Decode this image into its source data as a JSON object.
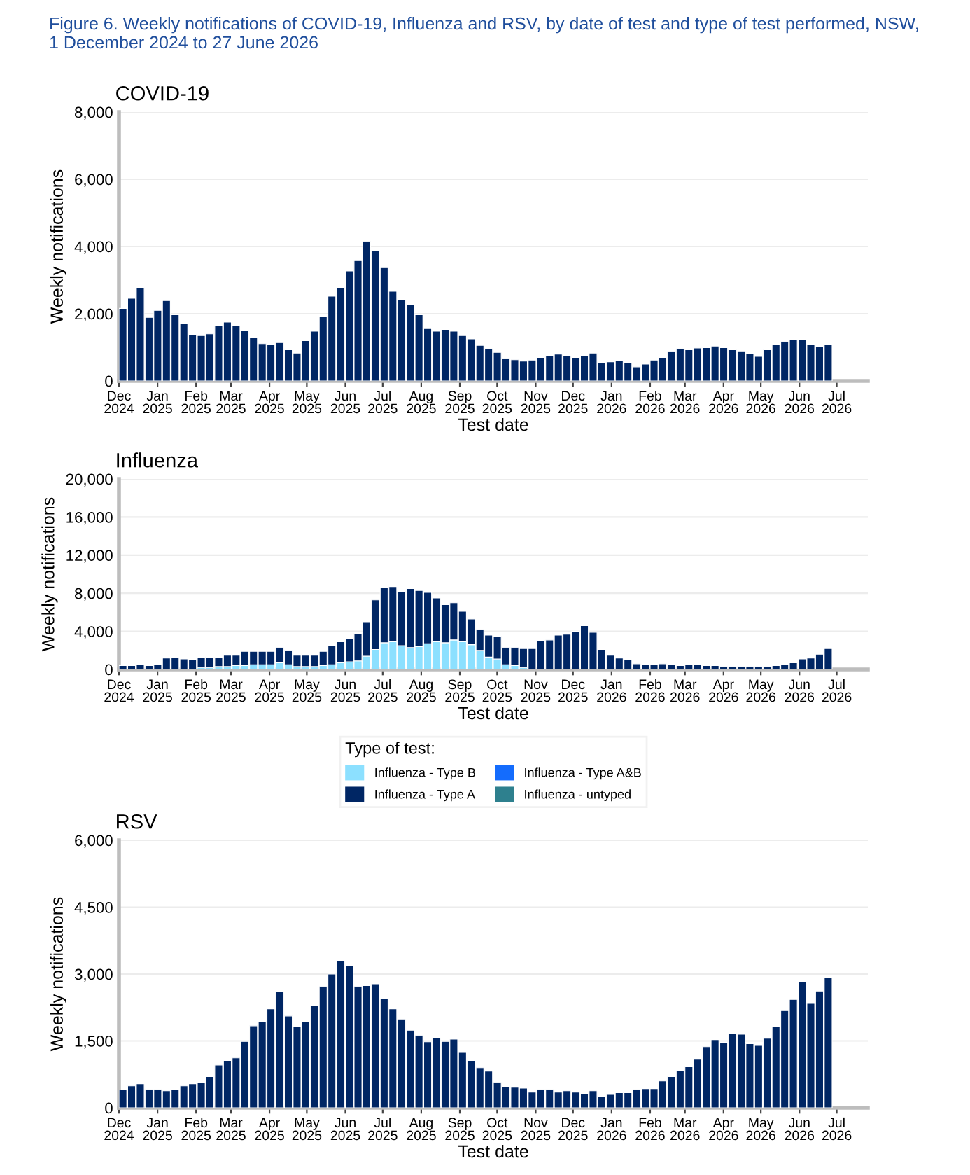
{
  "chart_data": [
    {
      "type": "bar",
      "title": "Figure 6. Weekly notifications of COVID-19, Influenza and RSV, by date of test and type of test performed, NSW,\n1 December 2024 to 27 June 2026",
      "subtitle": "COVID-19",
      "xlabel": "Test date",
      "ylabel": "Weekly notifications",
      "x": [
        "2024-12-01",
        "2024-12-08",
        "2024-12-15",
        "2024-12-22",
        "2024-12-29",
        "2025-01-05",
        "2025-01-12",
        "2025-01-19",
        "2025-01-26",
        "2025-02-02",
        "2025-02-09",
        "2025-02-16",
        "2025-02-23",
        "2025-03-02",
        "2025-03-09",
        "2025-03-16",
        "2025-03-23",
        "2025-03-30",
        "2025-04-06",
        "2025-04-13",
        "2025-04-20",
        "2025-04-27",
        "2025-05-04",
        "2025-05-11",
        "2025-05-18",
        "2025-05-25",
        "2025-06-01",
        "2025-06-08",
        "2025-06-15",
        "2025-06-22",
        "2025-06-29",
        "2025-07-06",
        "2025-07-13",
        "2025-07-20",
        "2025-07-27",
        "2025-08-03",
        "2025-08-10",
        "2025-08-17",
        "2025-08-24",
        "2025-08-31",
        "2025-09-07",
        "2025-09-14",
        "2025-09-21",
        "2025-09-28",
        "2025-10-05",
        "2025-10-12",
        "2025-10-19",
        "2025-10-26",
        "2025-11-02",
        "2025-11-09",
        "2025-11-16",
        "2025-11-23",
        "2025-11-30",
        "2025-12-07",
        "2025-12-14",
        "2025-12-21",
        "2025-12-28",
        "2026-01-04",
        "2026-01-11",
        "2026-01-18",
        "2026-01-25",
        "2026-02-01",
        "2026-02-08",
        "2026-02-15",
        "2026-02-22",
        "2026-03-01",
        "2026-03-08",
        "2026-03-15",
        "2026-03-22",
        "2026-03-29",
        "2026-04-05",
        "2026-04-12",
        "2026-04-19",
        "2026-04-26",
        "2026-05-03",
        "2026-05-10",
        "2026-05-17",
        "2026-05-24",
        "2026-05-31",
        "2026-06-07",
        "2026-06-14",
        "2026-06-21"
      ],
      "series": [
        {
          "color": "#002664",
          "values": [
            2160,
            2460,
            2780,
            1890,
            2100,
            2390,
            1970,
            1720,
            1370,
            1350,
            1400,
            1640,
            1750,
            1640,
            1510,
            1280,
            1110,
            1090,
            1140,
            930,
            830,
            1200,
            1480,
            1930,
            2520,
            2780,
            3270,
            3580,
            4150,
            3870,
            3370,
            2670,
            2410,
            2280,
            1970,
            1560,
            1480,
            1530,
            1480,
            1350,
            1250,
            1060,
            960,
            850,
            670,
            630,
            590,
            620,
            700,
            760,
            800,
            750,
            700,
            750,
            830,
            540,
            570,
            600,
            540,
            420,
            500,
            620,
            700,
            880,
            960,
            930,
            980,
            990,
            1040,
            990,
            930,
            890,
            810,
            730,
            930,
            1090,
            1170,
            1220,
            1220,
            1090,
            1020,
            1090
          ]
        }
      ],
      "xlim": [
        "2024-12-01",
        "2026-07-26"
      ],
      "xticks": [
        {
          "value": "2024-12-01",
          "label": "Dec\n2024"
        },
        {
          "value": "2025-01-01",
          "label": "Jan\n2025"
        },
        {
          "value": "2025-02-01",
          "label": "Feb\n2025"
        },
        {
          "value": "2025-03-01",
          "label": "Mar\n2025"
        },
        {
          "value": "2025-04-01",
          "label": "Apr\n2025"
        },
        {
          "value": "2025-05-01",
          "label": "May\n2025"
        },
        {
          "value": "2025-06-01",
          "label": "Jun\n2025"
        },
        {
          "value": "2025-07-01",
          "label": "Jul\n2025"
        },
        {
          "value": "2025-08-01",
          "label": "Aug\n2025"
        },
        {
          "value": "2025-09-01",
          "label": "Sep\n2025"
        },
        {
          "value": "2025-10-01",
          "label": "Oct\n2025"
        },
        {
          "value": "2025-11-01",
          "label": "Nov\n2025"
        },
        {
          "value": "2025-12-01",
          "label": "Dec\n2025"
        },
        {
          "value": "2026-01-01",
          "label": "Jan\n2026"
        },
        {
          "value": "2026-02-01",
          "label": "Feb\n2026"
        },
        {
          "value": "2026-03-01",
          "label": "Mar\n2026"
        },
        {
          "value": "2026-04-01",
          "label": "Apr\n2026"
        },
        {
          "value": "2026-05-01",
          "label": "May\n2026"
        },
        {
          "value": "2026-06-01",
          "label": "Jun\n2026"
        },
        {
          "value": "2026-07-01",
          "label": "Jul\n2026"
        }
      ],
      "ylim": [
        0,
        8000
      ],
      "yticks": [
        0,
        {
          "value": 2000,
          "label": "2,000"
        },
        {
          "value": 4000,
          "label": "4,000"
        },
        {
          "value": 6000,
          "label": "6,000"
        },
        {
          "value": 8000,
          "label": "8,000"
        }
      ],
      "grid": "y"
    },
    {
      "type": "bar",
      "title": "Influenza",
      "xlabel": "Test date",
      "ylabel": "Weekly notifications",
      "stacked": true,
      "legend": "bottom",
      "legend_title": "Type of test:",
      "x": [
        "2024-12-01",
        "2024-12-08",
        "2024-12-15",
        "2024-12-22",
        "2024-12-29",
        "2025-01-05",
        "2025-01-12",
        "2025-01-19",
        "2025-01-26",
        "2025-02-02",
        "2025-02-09",
        "2025-02-16",
        "2025-02-23",
        "2025-03-02",
        "2025-03-09",
        "2025-03-16",
        "2025-03-23",
        "2025-03-30",
        "2025-04-06",
        "2025-04-13",
        "2025-04-20",
        "2025-04-27",
        "2025-05-04",
        "2025-05-11",
        "2025-05-18",
        "2025-05-25",
        "2025-06-01",
        "2025-06-08",
        "2025-06-15",
        "2025-06-22",
        "2025-06-29",
        "2025-07-06",
        "2025-07-13",
        "2025-07-20",
        "2025-07-27",
        "2025-08-03",
        "2025-08-10",
        "2025-08-17",
        "2025-08-24",
        "2025-08-31",
        "2025-09-07",
        "2025-09-14",
        "2025-09-21",
        "2025-09-28",
        "2025-10-05",
        "2025-10-12",
        "2025-10-19",
        "2025-10-26",
        "2025-11-02",
        "2025-11-09",
        "2025-11-16",
        "2025-11-23",
        "2025-11-30",
        "2025-12-07",
        "2025-12-14",
        "2025-12-21",
        "2025-12-28",
        "2026-01-04",
        "2026-01-11",
        "2026-01-18",
        "2026-01-25",
        "2026-02-01",
        "2026-02-08",
        "2026-02-15",
        "2026-02-22",
        "2026-03-01",
        "2026-03-08",
        "2026-03-15",
        "2026-03-22",
        "2026-03-29",
        "2026-04-05",
        "2026-04-12",
        "2026-04-19",
        "2026-04-26",
        "2026-05-03",
        "2026-05-10",
        "2026-05-17",
        "2026-05-24",
        "2026-05-31",
        "2026-06-07",
        "2026-06-14",
        "2026-06-21"
      ],
      "series": [
        {
          "name": "Influenza - Type B",
          "color": "#8ce0ff",
          "values": [
            0,
            0,
            0,
            0,
            0,
            0,
            0,
            0,
            0,
            200,
            200,
            300,
            300,
            400,
            400,
            500,
            500,
            500,
            700,
            500,
            300,
            300,
            300,
            400,
            500,
            700,
            800,
            900,
            1400,
            2100,
            2800,
            2900,
            2500,
            2300,
            2400,
            2700,
            2900,
            2800,
            3100,
            2900,
            2600,
            2000,
            1300,
            1100,
            500,
            400,
            200,
            0,
            0,
            0,
            0,
            0,
            0,
            0,
            0,
            0,
            0,
            0,
            0,
            0,
            0,
            0,
            0,
            0,
            0,
            0,
            0,
            0,
            0,
            0,
            0,
            0,
            0,
            0,
            0,
            0,
            0,
            0,
            0,
            0,
            0,
            0
          ]
        },
        {
          "name": "Influenza - Type A",
          "color": "#002664",
          "values": [
            400,
            400,
            500,
            400,
            500,
            1200,
            1300,
            1100,
            1000,
            1100,
            1100,
            1000,
            1200,
            1100,
            1500,
            1400,
            1400,
            1400,
            1600,
            1500,
            1200,
            1200,
            1200,
            1500,
            2000,
            2200,
            2400,
            2900,
            3600,
            5200,
            5800,
            5800,
            5700,
            6200,
            5900,
            5400,
            4600,
            4000,
            3900,
            3200,
            2700,
            2200,
            2300,
            2400,
            1800,
            1900,
            2000,
            2200,
            3000,
            3100,
            3600,
            3700,
            4000,
            4600,
            3900,
            2100,
            1500,
            1200,
            1000,
            600,
            500,
            500,
            600,
            500,
            400,
            500,
            500,
            400,
            400,
            300,
            300,
            300,
            300,
            300,
            300,
            400,
            500,
            700,
            1100,
            1200,
            1600,
            2200
          ]
        },
        {
          "name": "Influenza - Type A&B",
          "color": "#146cfd",
          "values": [
            null,
            null,
            null,
            null,
            null,
            null,
            null,
            null,
            null,
            null,
            null,
            null,
            null,
            null,
            null,
            null,
            null,
            null,
            null,
            null,
            null,
            null,
            null,
            null,
            null,
            null,
            null,
            null,
            null,
            null,
            null,
            null,
            null,
            null,
            null,
            null,
            null,
            null,
            null,
            null,
            null,
            null,
            null,
            null,
            null,
            null,
            null,
            null,
            null,
            null,
            null,
            null,
            null,
            null,
            null,
            null,
            null,
            null,
            null,
            null,
            null,
            null,
            null,
            null,
            null,
            null,
            null,
            null,
            null,
            null,
            null,
            null,
            null,
            null,
            null,
            null,
            null,
            null,
            null,
            null,
            null,
            null
          ]
        },
        {
          "name": "Influenza - untyped",
          "color": "#2e808e",
          "values": [
            null,
            null,
            null,
            null,
            null,
            null,
            null,
            null,
            null,
            null,
            null,
            null,
            null,
            null,
            null,
            null,
            null,
            null,
            null,
            null,
            null,
            null,
            null,
            null,
            null,
            null,
            null,
            null,
            null,
            null,
            null,
            null,
            null,
            null,
            null,
            null,
            null,
            null,
            null,
            null,
            null,
            null,
            null,
            null,
            null,
            null,
            null,
            null,
            null,
            null,
            null,
            null,
            null,
            null,
            null,
            null,
            null,
            null,
            null,
            null,
            null,
            null,
            null,
            null,
            null,
            null,
            null,
            null,
            null,
            null,
            null,
            null,
            null,
            null,
            null,
            null,
            null,
            null,
            null,
            null,
            null,
            null
          ]
        }
      ],
      "xlim": [
        "2024-12-01",
        "2026-07-26"
      ],
      "xticks": [
        {
          "value": "2024-12-01",
          "label": "Dec\n2024"
        },
        {
          "value": "2025-01-01",
          "label": "Jan\n2025"
        },
        {
          "value": "2025-02-01",
          "label": "Feb\n2025"
        },
        {
          "value": "2025-03-01",
          "label": "Mar\n2025"
        },
        {
          "value": "2025-04-01",
          "label": "Apr\n2025"
        },
        {
          "value": "2025-05-01",
          "label": "May\n2025"
        },
        {
          "value": "2025-06-01",
          "label": "Jun\n2025"
        },
        {
          "value": "2025-07-01",
          "label": "Jul\n2025"
        },
        {
          "value": "2025-08-01",
          "label": "Aug\n2025"
        },
        {
          "value": "2025-09-01",
          "label": "Sep\n2025"
        },
        {
          "value": "2025-10-01",
          "label": "Oct\n2025"
        },
        {
          "value": "2025-11-01",
          "label": "Nov\n2025"
        },
        {
          "value": "2025-12-01",
          "label": "Dec\n2025"
        },
        {
          "value": "2026-01-01",
          "label": "Jan\n2026"
        },
        {
          "value": "2026-02-01",
          "label": "Feb\n2026"
        },
        {
          "value": "2026-03-01",
          "label": "Mar\n2026"
        },
        {
          "value": "2026-04-01",
          "label": "Apr\n2026"
        },
        {
          "value": "2026-05-01",
          "label": "May\n2026"
        },
        {
          "value": "2026-06-01",
          "label": "Jun\n2026"
        },
        {
          "value": "2026-07-01",
          "label": "Jul\n2026"
        }
      ],
      "ylim": [
        0,
        20000
      ],
      "yticks": [
        0,
        {
          "value": 4000,
          "label": "4,000"
        },
        {
          "value": 8000,
          "label": "8,000"
        },
        {
          "value": 12000,
          "label": "12,000"
        },
        {
          "value": 16000,
          "label": "16,000"
        },
        {
          "value": 20000,
          "label": "20,000"
        }
      ],
      "grid": "y"
    },
    {
      "type": "bar",
      "title": "RSV",
      "xlabel": "Test date",
      "ylabel": "Weekly notifications",
      "x": [
        "2024-12-01",
        "2024-12-08",
        "2024-12-15",
        "2024-12-22",
        "2024-12-29",
        "2025-01-05",
        "2025-01-12",
        "2025-01-19",
        "2025-01-26",
        "2025-02-02",
        "2025-02-09",
        "2025-02-16",
        "2025-02-23",
        "2025-03-02",
        "2025-03-09",
        "2025-03-16",
        "2025-03-23",
        "2025-03-30",
        "2025-04-06",
        "2025-04-13",
        "2025-04-20",
        "2025-04-27",
        "2025-05-04",
        "2025-05-11",
        "2025-05-18",
        "2025-05-25",
        "2025-06-01",
        "2025-06-08",
        "2025-06-15",
        "2025-06-22",
        "2025-06-29",
        "2025-07-06",
        "2025-07-13",
        "2025-07-20",
        "2025-07-27",
        "2025-08-03",
        "2025-08-10",
        "2025-08-17",
        "2025-08-24",
        "2025-08-31",
        "2025-09-07",
        "2025-09-14",
        "2025-09-21",
        "2025-09-28",
        "2025-10-05",
        "2025-10-12",
        "2025-10-19",
        "2025-10-26",
        "2025-11-02",
        "2025-11-09",
        "2025-11-16",
        "2025-11-23",
        "2025-11-30",
        "2025-12-07",
        "2025-12-14",
        "2025-12-21",
        "2025-12-28",
        "2026-01-04",
        "2026-01-11",
        "2026-01-18",
        "2026-01-25",
        "2026-02-01",
        "2026-02-08",
        "2026-02-15",
        "2026-02-22",
        "2026-03-01",
        "2026-03-08",
        "2026-03-15",
        "2026-03-22",
        "2026-03-29",
        "2026-04-05",
        "2026-04-12",
        "2026-04-19",
        "2026-04-26",
        "2026-05-03",
        "2026-05-10",
        "2026-05-17",
        "2026-05-24",
        "2026-05-31",
        "2026-06-07",
        "2026-06-14",
        "2026-06-21"
      ],
      "series": [
        {
          "color": "#002664",
          "values": [
            400,
            490,
            540,
            410,
            410,
            380,
            400,
            490,
            540,
            560,
            700,
            960,
            1060,
            1120,
            1490,
            1840,
            1940,
            2220,
            2600,
            2060,
            1820,
            1930,
            2290,
            2720,
            3000,
            3290,
            3180,
            2720,
            2740,
            2780,
            2460,
            2220,
            1990,
            1740,
            1620,
            1480,
            1570,
            1490,
            1540,
            1240,
            1060,
            900,
            820,
            570,
            480,
            460,
            440,
            350,
            410,
            410,
            350,
            380,
            350,
            320,
            380,
            260,
            300,
            340,
            340,
            410,
            430,
            430,
            600,
            700,
            840,
            920,
            1090,
            1370,
            1530,
            1460,
            1670,
            1650,
            1440,
            1400,
            1560,
            1820,
            2180,
            2430,
            2820,
            2340,
            2620,
            2930
          ]
        }
      ],
      "xlim": [
        "2024-12-01",
        "2026-07-26"
      ],
      "xticks": [
        {
          "value": "2024-12-01",
          "label": "Dec\n2024"
        },
        {
          "value": "2025-01-01",
          "label": "Jan\n2025"
        },
        {
          "value": "2025-02-01",
          "label": "Feb\n2025"
        },
        {
          "value": "2025-03-01",
          "label": "Mar\n2025"
        },
        {
          "value": "2025-04-01",
          "label": "Apr\n2025"
        },
        {
          "value": "2025-05-01",
          "label": "May\n2025"
        },
        {
          "value": "2025-06-01",
          "label": "Jun\n2025"
        },
        {
          "value": "2025-07-01",
          "label": "Jul\n2025"
        },
        {
          "value": "2025-08-01",
          "label": "Aug\n2025"
        },
        {
          "value": "2025-09-01",
          "label": "Sep\n2025"
        },
        {
          "value": "2025-10-01",
          "label": "Oct\n2025"
        },
        {
          "value": "2025-11-01",
          "label": "Nov\n2025"
        },
        {
          "value": "2025-12-01",
          "label": "Dec\n2025"
        },
        {
          "value": "2026-01-01",
          "label": "Jan\n2026"
        },
        {
          "value": "2026-02-01",
          "label": "Feb\n2026"
        },
        {
          "value": "2026-03-01",
          "label": "Mar\n2026"
        },
        {
          "value": "2026-04-01",
          "label": "Apr\n2026"
        },
        {
          "value": "2026-05-01",
          "label": "May\n2026"
        },
        {
          "value": "2026-06-01",
          "label": "Jun\n2026"
        },
        {
          "value": "2026-07-01",
          "label": "Jul\n2026"
        }
      ],
      "ylim": [
        0,
        6000
      ],
      "yticks": [
        0,
        {
          "value": 1500,
          "label": "1,500"
        },
        {
          "value": 3000,
          "label": "3,000"
        },
        {
          "value": 4500,
          "label": "4,500"
        },
        {
          "value": 6000,
          "label": "6,000"
        }
      ],
      "grid": "y"
    }
  ]
}
